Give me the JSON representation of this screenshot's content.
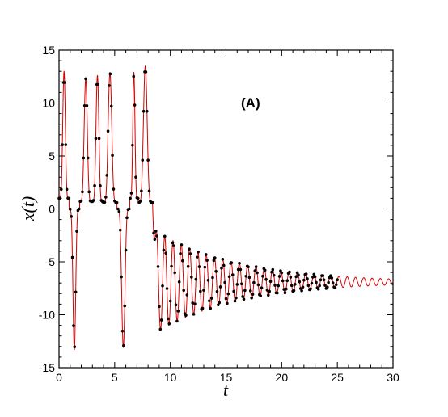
{
  "chart_data": {
    "type": "line",
    "title": "",
    "panel_label": "(A)",
    "xlabel": "t",
    "ylabel": "x(t)",
    "xlim": [
      0,
      30
    ],
    "ylim": [
      -15,
      15
    ],
    "xticks": [
      0,
      5,
      10,
      15,
      20,
      25,
      30
    ],
    "yticks": [
      -15,
      -10,
      -5,
      0,
      5,
      10,
      15
    ],
    "xtick_labels": [
      "0",
      "5",
      "10",
      "15",
      "20",
      "25",
      "30"
    ],
    "ytick_labels": [
      "-15",
      "-10",
      "-5",
      "0",
      "5",
      "10",
      "15"
    ],
    "grid": false,
    "legend": "none",
    "series": [
      {
        "style": "line",
        "color": "#d40000",
        "segments": [
          {
            "kind": "spike",
            "t0": 0.0,
            "t1": 0.9,
            "base": 1.0,
            "peak": 13.0
          },
          {
            "kind": "dip",
            "t0": 0.9,
            "t1": 1.85,
            "base": 0.0,
            "trough": -13.3
          },
          {
            "kind": "spike",
            "t0": 1.85,
            "t1": 2.95,
            "base": 0.7,
            "peak": 12.3
          },
          {
            "kind": "spike",
            "t0": 2.95,
            "t1": 3.95,
            "base": 0.7,
            "peak": 12.6
          },
          {
            "kind": "spike",
            "t0": 3.95,
            "t1": 5.2,
            "base": 0.6,
            "peak": 12.9
          },
          {
            "kind": "dip",
            "t0": 5.2,
            "t1": 6.35,
            "base": 0.0,
            "trough": -13.1
          },
          {
            "kind": "spike",
            "t0": 6.35,
            "t1": 7.1,
            "base": 1.0,
            "peak": 12.9
          },
          {
            "kind": "spike",
            "t0": 7.1,
            "t1": 8.4,
            "base": 0.6,
            "peak": 13.5
          },
          {
            "kind": "decay",
            "t0": 8.4,
            "t1": 30.0,
            "center": -6.9,
            "amp0": 5.0,
            "tau": 7.5,
            "period": 0.745,
            "phase": 0.18
          }
        ]
      },
      {
        "style": "markers",
        "color": "#000000",
        "sample_dt": 0.1,
        "t_range": [
          0.0,
          25.0
        ]
      }
    ]
  }
}
